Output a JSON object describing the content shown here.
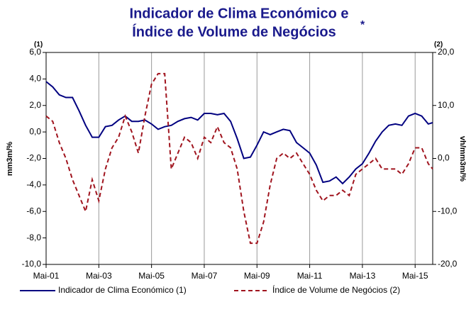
{
  "chart_data": {
    "type": "line",
    "title": [
      "Indicador de Clima Económico e",
      "Índice de Volume de Negócios"
    ],
    "title_mark": "*",
    "y_axis_label": "mm3m/%",
    "y2_axis_label": "vh/mm3m/%",
    "y_axis_note": "(1)",
    "y2_axis_note": "(2)",
    "grid": "x",
    "legend": "bottom",
    "xlim": [
      "2001-05",
      "2016-01"
    ],
    "xticks": [
      {
        "value": "2001-05",
        "label": "Mai-01"
      },
      {
        "value": "2003-05",
        "label": "Mai-03"
      },
      {
        "value": "2005-05",
        "label": "Mai-05"
      },
      {
        "value": "2007-05",
        "label": "Mai-07"
      },
      {
        "value": "2009-05",
        "label": "Mai-09"
      },
      {
        "value": "2011-05",
        "label": "Mai-11"
      },
      {
        "value": "2013-05",
        "label": "Mai-13"
      },
      {
        "value": "2015-05",
        "label": "Mai-15"
      }
    ],
    "ylim": [
      -10,
      6
    ],
    "yticks": [
      {
        "value": -10,
        "label": "-10,0"
      },
      {
        "value": -8,
        "label": "-8,0"
      },
      {
        "value": -6,
        "label": "-6,0"
      },
      {
        "value": -4,
        "label": "-4,0"
      },
      {
        "value": -2,
        "label": "-2,0"
      },
      {
        "value": 0,
        "label": "0,0"
      },
      {
        "value": 2,
        "label": "2,0"
      },
      {
        "value": 4,
        "label": "4,0"
      },
      {
        "value": 6,
        "label": "6,0"
      }
    ],
    "y2lim": [
      -20,
      20
    ],
    "y2ticks": [
      {
        "value": -20,
        "label": "-20,0"
      },
      {
        "value": -10,
        "label": "-10,0"
      },
      {
        "value": 0,
        "label": "0,0"
      },
      {
        "value": 10,
        "label": "10,0"
      },
      {
        "value": 20,
        "label": "20,0"
      }
    ],
    "x": [
      "2001-05",
      "2001-08",
      "2001-11",
      "2002-02",
      "2002-05",
      "2002-08",
      "2002-11",
      "2003-02",
      "2003-05",
      "2003-08",
      "2003-11",
      "2004-02",
      "2004-05",
      "2004-08",
      "2004-11",
      "2005-02",
      "2005-05",
      "2005-08",
      "2005-11",
      "2006-02",
      "2006-05",
      "2006-08",
      "2006-11",
      "2007-02",
      "2007-05",
      "2007-08",
      "2007-11",
      "2008-02",
      "2008-05",
      "2008-08",
      "2008-11",
      "2009-02",
      "2009-05",
      "2009-08",
      "2009-11",
      "2010-02",
      "2010-05",
      "2010-08",
      "2010-11",
      "2011-02",
      "2011-05",
      "2011-08",
      "2011-11",
      "2012-02",
      "2012-05",
      "2012-08",
      "2012-11",
      "2013-02",
      "2013-05",
      "2013-08",
      "2013-11",
      "2014-02",
      "2014-05",
      "2014-08",
      "2014-11",
      "2015-02",
      "2015-05",
      "2015-08",
      "2015-11",
      "2016-01"
    ],
    "series": [
      {
        "name": "Indicador de Clima Económico (1)",
        "color": "#000080",
        "dash": false,
        "values": [
          3.8,
          3.4,
          2.8,
          2.6,
          2.6,
          1.6,
          0.5,
          -0.4,
          -0.4,
          0.4,
          0.5,
          0.9,
          1.2,
          0.8,
          0.8,
          0.9,
          0.6,
          0.2,
          0.4,
          0.5,
          0.8,
          1.0,
          1.1,
          0.9,
          1.4,
          1.4,
          1.3,
          1.4,
          0.8,
          -0.5,
          -2.0,
          -1.9,
          -1.0,
          0.0,
          -0.2,
          0.0,
          0.2,
          0.1,
          -0.8,
          -1.2,
          -1.6,
          -2.5,
          -3.8,
          -3.7,
          -3.4,
          -3.9,
          -3.4,
          -2.8,
          -2.4,
          -1.6,
          -0.7,
          0.0,
          0.5,
          0.6,
          0.5,
          1.2,
          1.4,
          1.2,
          0.6,
          0.7
        ]
      },
      {
        "name": "Índice de Volume de Negócios (2)",
        "color": "#a0141e",
        "dash": true,
        "axis": "y2",
        "values": [
          8,
          7,
          3,
          0,
          -4,
          -7,
          -10,
          -4,
          -8,
          -2,
          2,
          4,
          8,
          5,
          1,
          8,
          14,
          16,
          16,
          -2,
          1,
          4,
          3,
          0,
          4,
          3,
          6,
          3,
          2,
          -2,
          -10,
          -16,
          -16,
          -12,
          -5,
          0,
          1,
          0,
          1,
          -1,
          -3,
          -6,
          -8,
          -7,
          -7,
          -6,
          -7,
          -3,
          -2,
          -1,
          0,
          -2,
          -2,
          -2,
          -3,
          -1,
          2,
          2,
          -1,
          -2
        ]
      }
    ]
  }
}
